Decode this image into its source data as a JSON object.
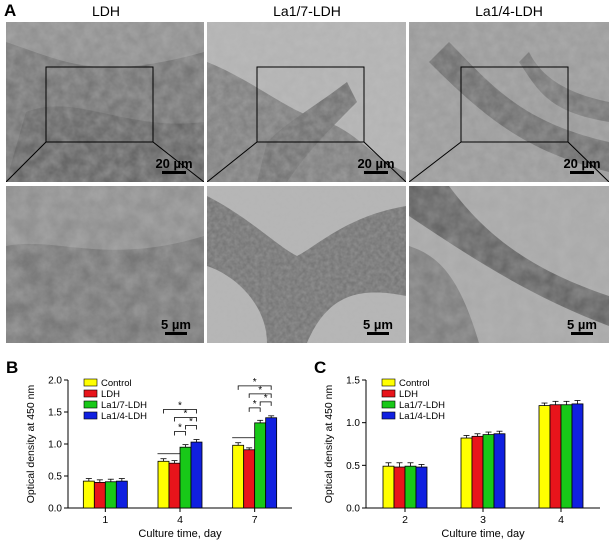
{
  "panel_a": {
    "letter": "A",
    "columns": [
      {
        "title": "LDH",
        "scale_top": "20 µm",
        "scale_bottom": "5 µm"
      },
      {
        "title": "La1/7-LDH",
        "scale_top": "20 µm",
        "scale_bottom": "5 µm"
      },
      {
        "title": "La1/4-LDH",
        "scale_top": "20 µm",
        "scale_bottom": "5 µm"
      }
    ]
  },
  "colors": {
    "Control": "#ffff00",
    "LDH": "#e8141b",
    "La1/7-LDH": "#18c818",
    "La1/4-LDH": "#1020e0"
  },
  "chart_data": [
    {
      "letter": "B",
      "type": "bar",
      "categories": [
        "1",
        "4",
        "7"
      ],
      "xlabel": "Culture time, day",
      "ylabel": "Optical density at 450 nm",
      "ylim": [
        0,
        2.0
      ],
      "yticks": [
        "0.0",
        "0.5",
        "1.0",
        "1.5",
        "2.0"
      ],
      "legend": "top-left",
      "series": [
        {
          "name": "Control",
          "values": [
            0.42,
            0.73,
            0.98
          ],
          "errors": [
            0.04,
            0.04,
            0.04
          ]
        },
        {
          "name": "LDH",
          "values": [
            0.4,
            0.7,
            0.91
          ],
          "errors": [
            0.04,
            0.04,
            0.03
          ]
        },
        {
          "name": "La1/7-LDH",
          "values": [
            0.41,
            0.95,
            1.33
          ],
          "errors": [
            0.04,
            0.04,
            0.04
          ]
        },
        {
          "name": "La1/4-LDH",
          "values": [
            0.42,
            1.03,
            1.41
          ],
          "errors": [
            0.04,
            0.04,
            0.03
          ]
        }
      ],
      "significance": "*"
    },
    {
      "letter": "C",
      "type": "bar",
      "categories": [
        "2",
        "3",
        "4"
      ],
      "xlabel": "Culture time, day",
      "ylabel": "Optical density at 450 nm",
      "ylim": [
        0,
        1.5
      ],
      "yticks": [
        "0.0",
        "0.5",
        "1.0",
        "1.5"
      ],
      "legend": "top-left",
      "series": [
        {
          "name": "Control",
          "values": [
            0.49,
            0.82,
            1.2
          ],
          "errors": [
            0.04,
            0.03,
            0.03
          ]
        },
        {
          "name": "LDH",
          "values": [
            0.48,
            0.84,
            1.21
          ],
          "errors": [
            0.05,
            0.03,
            0.04
          ]
        },
        {
          "name": "La1/7-LDH",
          "values": [
            0.49,
            0.86,
            1.21
          ],
          "errors": [
            0.04,
            0.03,
            0.04
          ]
        },
        {
          "name": "La1/4-LDH",
          "values": [
            0.48,
            0.87,
            1.22
          ],
          "errors": [
            0.03,
            0.03,
            0.04
          ]
        }
      ]
    }
  ]
}
